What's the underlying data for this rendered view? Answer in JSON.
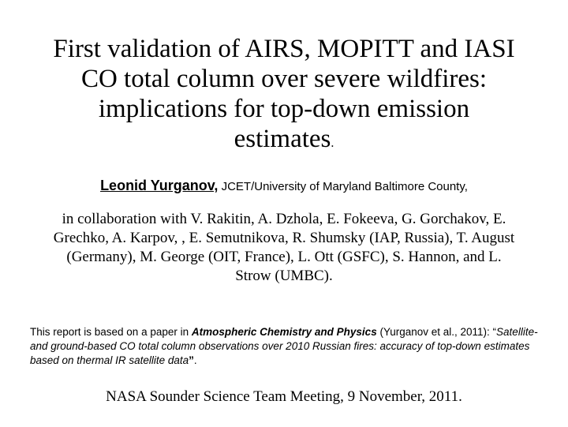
{
  "slide": {
    "title": "First validation of AIRS, MOPITT and IASI CO total column over severe wildfires: implications for top-down emission estimates",
    "title_period": ".",
    "author": {
      "name": "Leonid Yurganov,",
      "affiliation": " JCET/University of Maryland Baltimore County,"
    },
    "collaboration": "in collaboration with V. Rakitin, A. Dzhola,  E. Fokeeva, G. Gorchakov, E. Grechko,  A. Karpov, , E. Semutnikova, R. Shumsky (IAP, Russia), T. August (Germany), M. George (OIT, France), L. Ott (GSFC), S. Hannon,  and L. Strow (UMBC).",
    "report": {
      "prefix": "This report is based on a  paper in ",
      "journal": "Atmospheric Chemistry and Physics",
      "citation": " (Yurganov et al., 2011): “",
      "paper_title": "Satellite- and ground-based CO total column observations over 2010 Russian fires: accuracy of top-down estimates based on thermal IR satellite data",
      "close_quote": "”",
      "suffix": "."
    },
    "meeting": "NASA Sounder Science Team Meeting, 9 November, 2011."
  }
}
